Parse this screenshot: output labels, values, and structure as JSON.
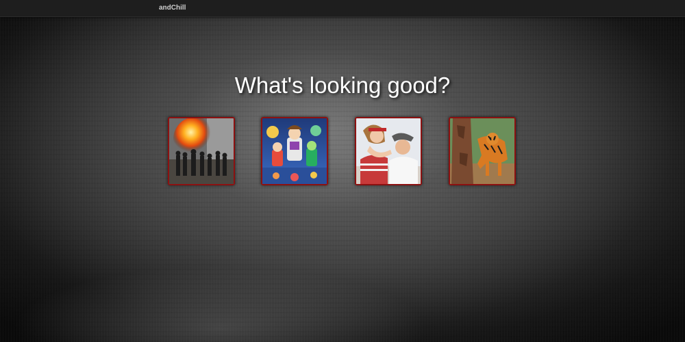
{
  "header": {
    "brand": "andChill"
  },
  "main": {
    "headline": "What's looking good?",
    "genres": [
      {
        "icon": "action-explosion-image",
        "frame_color": "#8c1111"
      },
      {
        "icon": "animated-toys-image",
        "frame_color": "#8c1111"
      },
      {
        "icon": "romance-couple-image",
        "frame_color": "#8c1111"
      },
      {
        "icon": "nature-tiger-image",
        "frame_color": "#8c1111"
      }
    ]
  }
}
